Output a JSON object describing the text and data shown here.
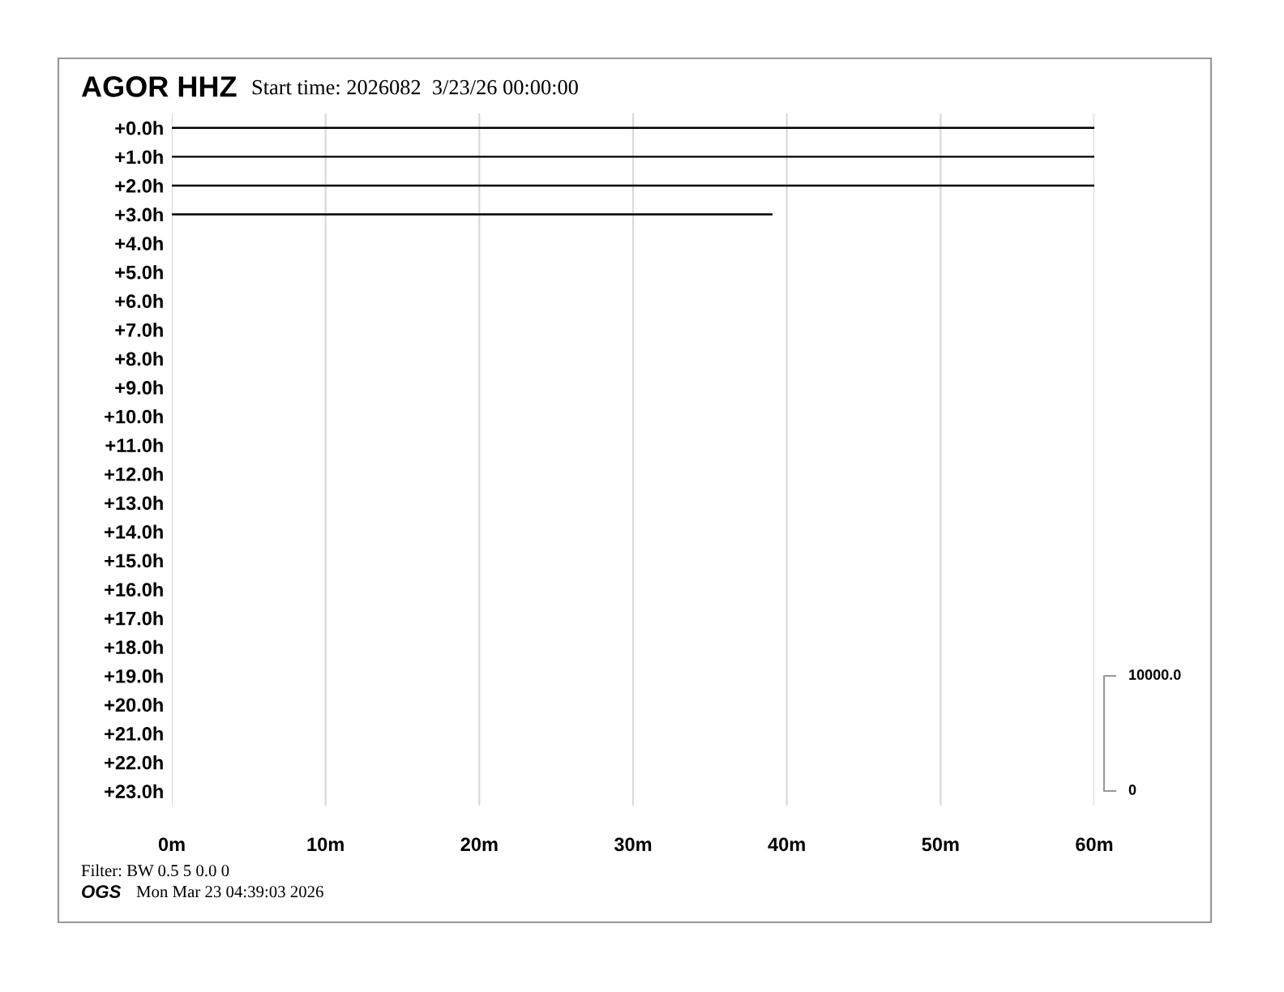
{
  "chart_data": {
    "type": "line",
    "title": "AGOR HHZ",
    "subtitle": "Start time: 2026082  3/23/26 00:00:00",
    "xlim": [
      0,
      60
    ],
    "xticks": [
      {
        "value": 0,
        "label": "0m"
      },
      {
        "value": 10,
        "label": "10m"
      },
      {
        "value": 20,
        "label": "20m"
      },
      {
        "value": 30,
        "label": "30m"
      },
      {
        "value": 40,
        "label": "40m"
      },
      {
        "value": 50,
        "label": "50m"
      },
      {
        "value": 60,
        "label": "60m"
      }
    ],
    "ylim": [
      23.5,
      -0.5
    ],
    "yticks": [
      {
        "value": 0,
        "label": "+0.0h"
      },
      {
        "value": 1,
        "label": "+1.0h"
      },
      {
        "value": 2,
        "label": "+2.0h"
      },
      {
        "value": 3,
        "label": "+3.0h"
      },
      {
        "value": 4,
        "label": "+4.0h"
      },
      {
        "value": 5,
        "label": "+5.0h"
      },
      {
        "value": 6,
        "label": "+6.0h"
      },
      {
        "value": 7,
        "label": "+7.0h"
      },
      {
        "value": 8,
        "label": "+8.0h"
      },
      {
        "value": 9,
        "label": "+9.0h"
      },
      {
        "value": 10,
        "label": "+10.0h"
      },
      {
        "value": 11,
        "label": "+11.0h"
      },
      {
        "value": 12,
        "label": "+12.0h"
      },
      {
        "value": 13,
        "label": "+13.0h"
      },
      {
        "value": 14,
        "label": "+14.0h"
      },
      {
        "value": 15,
        "label": "+15.0h"
      },
      {
        "value": 16,
        "label": "+16.0h"
      },
      {
        "value": 17,
        "label": "+17.0h"
      },
      {
        "value": 18,
        "label": "+18.0h"
      },
      {
        "value": 19,
        "label": "+19.0h"
      },
      {
        "value": 20,
        "label": "+20.0h"
      },
      {
        "value": 21,
        "label": "+21.0h"
      },
      {
        "value": 22,
        "label": "+22.0h"
      },
      {
        "value": 23,
        "label": "+23.0h"
      }
    ],
    "grid": "x",
    "marker": "none",
    "line_style": "solid",
    "series": [
      {
        "color": "#000000",
        "x": [
          0,
          60
        ],
        "values": [
          0,
          0
        ]
      },
      {
        "color": "#000000",
        "x": [
          0,
          60
        ],
        "values": [
          1,
          1
        ]
      },
      {
        "color": "#000000",
        "x": [
          0,
          60
        ],
        "values": [
          2,
          2
        ]
      },
      {
        "color": "#000000",
        "x": [
          0,
          39
        ],
        "values": [
          3,
          3
        ]
      }
    ],
    "annotations": [
      "10000.0",
      "0",
      "Filter: BW 0.5 5 0.0 0",
      "OGS",
      "Mon Mar 23 04:39:03 2026"
    ]
  }
}
